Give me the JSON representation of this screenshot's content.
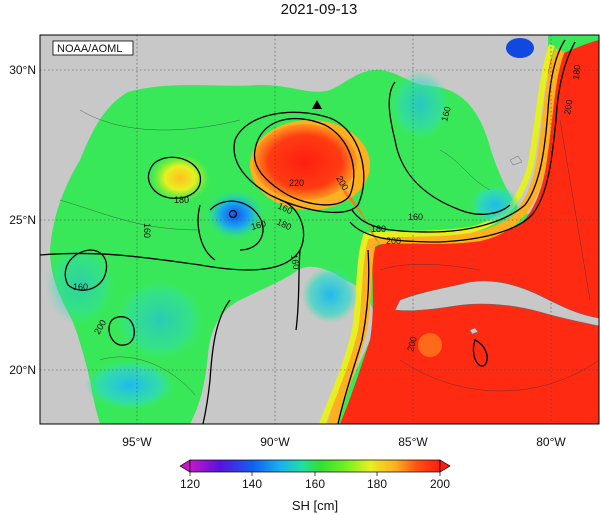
{
  "title": "2021-09-13",
  "credit": "NOAA/AOML",
  "lat_labels": [
    "30°N",
    "25°N",
    "20°N"
  ],
  "lon_labels": [
    "95°W",
    "90°W",
    "85°W",
    "80°W"
  ],
  "contour_labels": [
    "180",
    "160",
    "220",
    "200",
    "160",
    "180",
    "160",
    "180",
    "160",
    "160",
    "160",
    "200",
    "200",
    "160",
    "180",
    "200",
    "200"
  ],
  "colorbar": {
    "label": "SH [cm]",
    "ticks": [
      "120",
      "140",
      "160",
      "180",
      "200"
    ],
    "colors": [
      "#c218c8",
      "#5a10e0",
      "#1060f0",
      "#18b0f0",
      "#20e0a0",
      "#30e030",
      "#70f020",
      "#e6f020",
      "#ffb020",
      "#ff5010",
      "#ff1c10"
    ]
  },
  "map_colors": {
    "land": "#c8c8c8",
    "gulf_base": "#38e858",
    "loop_current": "#ff2a12"
  },
  "markers": [
    "triangle",
    "open-circle"
  ]
}
